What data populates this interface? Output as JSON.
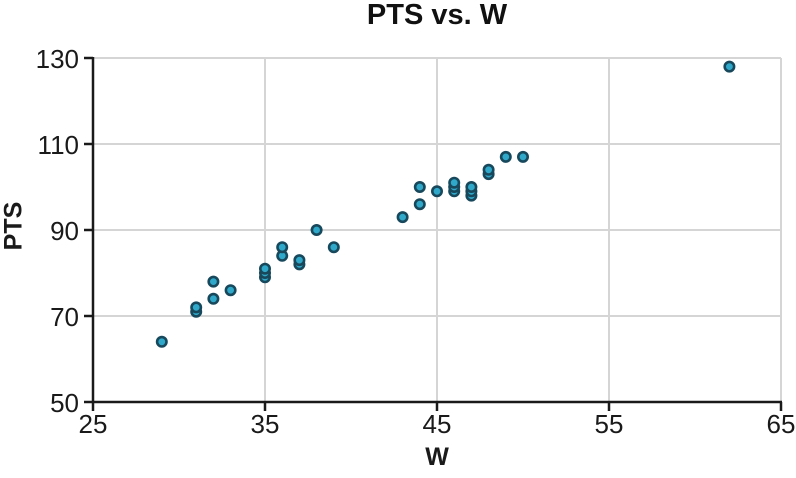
{
  "figure": {
    "background": "#ffffff"
  },
  "chart_data": {
    "type": "scatter",
    "title": "PTS vs. W",
    "xlabel": "W",
    "ylabel": "PTS",
    "xlim": [
      25,
      65
    ],
    "ylim": [
      50,
      130
    ],
    "xticks": [
      25,
      35,
      45,
      55,
      65
    ],
    "yticks": [
      50,
      70,
      90,
      110,
      130
    ],
    "grid": true,
    "legend": false,
    "points": [
      [
        29,
        64
      ],
      [
        31,
        71
      ],
      [
        31,
        72
      ],
      [
        32,
        74
      ],
      [
        32,
        78
      ],
      [
        33,
        76
      ],
      [
        35,
        79
      ],
      [
        35,
        80
      ],
      [
        35,
        81
      ],
      [
        36,
        84
      ],
      [
        36,
        86
      ],
      [
        37,
        82
      ],
      [
        37,
        83
      ],
      [
        38,
        90
      ],
      [
        39,
        86
      ],
      [
        43,
        93
      ],
      [
        44,
        96
      ],
      [
        44,
        100
      ],
      [
        45,
        99
      ],
      [
        46,
        99
      ],
      [
        46,
        100
      ],
      [
        46,
        101
      ],
      [
        47,
        98
      ],
      [
        47,
        99
      ],
      [
        47,
        100
      ],
      [
        48,
        103
      ],
      [
        48,
        104
      ],
      [
        49,
        107
      ],
      [
        50,
        107
      ],
      [
        62,
        128
      ]
    ],
    "colors": {
      "point_fill": "#2fa8c9",
      "point_stroke": "#17485b",
      "grid": "#d5d5d5",
      "axis": "#1a1a1a",
      "text": "#1a1a1a"
    }
  }
}
